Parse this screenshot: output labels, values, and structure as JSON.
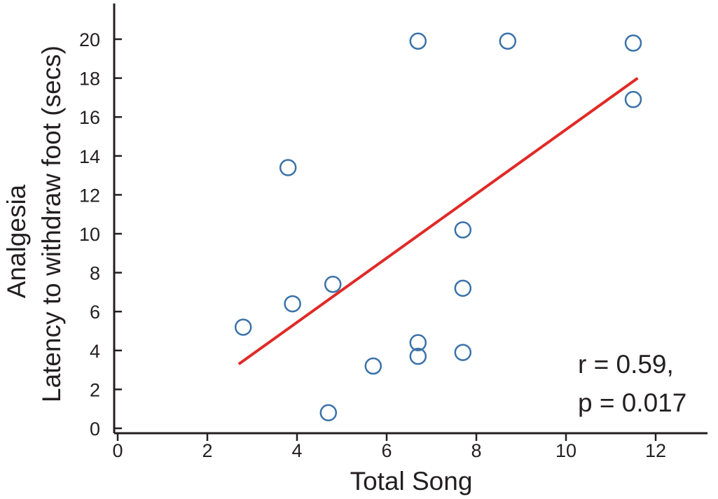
{
  "chart_data": {
    "type": "scatter",
    "title": "",
    "xlabel": "Total Song",
    "ylabel_lines": [
      "Analgesia",
      "Latency to withdraw foot (secs)"
    ],
    "xlim": [
      0,
      13.2
    ],
    "ylim": [
      0,
      21.6
    ],
    "x_ticks": [
      0,
      2,
      4,
      6,
      8,
      10,
      12
    ],
    "y_ticks": [
      0,
      2,
      4,
      6,
      8,
      10,
      12,
      14,
      16,
      18,
      20
    ],
    "grid": false,
    "points": [
      {
        "x": 2.8,
        "y": 5.2
      },
      {
        "x": 3.8,
        "y": 13.4
      },
      {
        "x": 3.9,
        "y": 6.4
      },
      {
        "x": 4.8,
        "y": 7.4
      },
      {
        "x": 4.7,
        "y": 0.8
      },
      {
        "x": 5.7,
        "y": 3.2
      },
      {
        "x": 6.7,
        "y": 4.4
      },
      {
        "x": 6.7,
        "y": 3.7
      },
      {
        "x": 6.7,
        "y": 19.9
      },
      {
        "x": 7.7,
        "y": 10.2
      },
      {
        "x": 7.7,
        "y": 7.2
      },
      {
        "x": 7.7,
        "y": 3.9
      },
      {
        "x": 8.7,
        "y": 19.9
      },
      {
        "x": 11.5,
        "y": 19.8
      },
      {
        "x": 11.5,
        "y": 16.9
      }
    ],
    "fit_line": {
      "x": [
        2.7,
        11.6
      ],
      "y": [
        3.3,
        18.0
      ]
    },
    "annotation": [
      "r = 0.59,",
      "p = 0.017"
    ],
    "colors": {
      "points": "#3a72a8",
      "fit_line": "#e02a26",
      "axes": "#231f20"
    }
  }
}
